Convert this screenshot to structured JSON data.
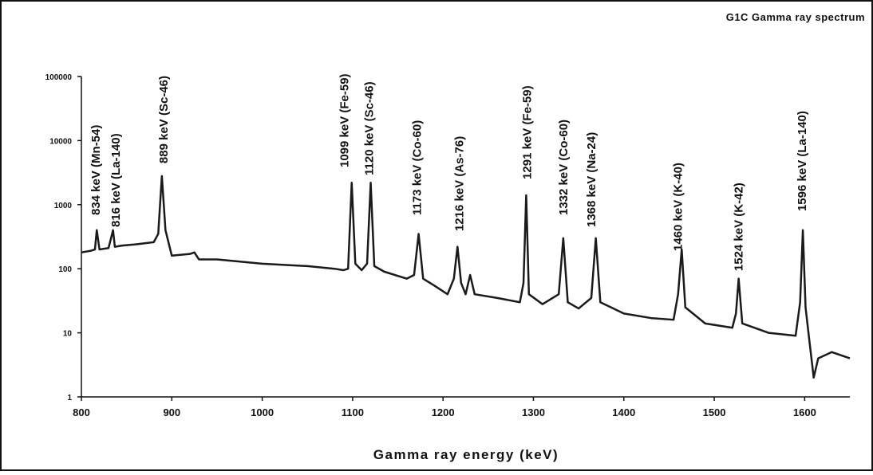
{
  "chart_data": {
    "type": "line",
    "title": "G1C Gamma ray spectrum",
    "x_label": "Gamma ray energy (keV)",
    "log_y": true,
    "grid": false,
    "xlim": [
      800,
      1650
    ],
    "xticks": [
      800,
      900,
      1000,
      1100,
      1200,
      1300,
      1400,
      1500,
      1600
    ],
    "ylim": [
      1,
      100000
    ],
    "yticks": [
      1,
      10,
      100,
      1000,
      10000,
      100000
    ],
    "series": [
      {
        "color": "#1a1a1a",
        "x": [
          800,
          810,
          815,
          817,
          820,
          830,
          835,
          837,
          845,
          860,
          880,
          885,
          889,
          893,
          900,
          920,
          925,
          930,
          950,
          1000,
          1050,
          1080,
          1090,
          1095,
          1099,
          1103,
          1110,
          1116,
          1120,
          1124,
          1135,
          1160,
          1168,
          1173,
          1178,
          1190,
          1205,
          1212,
          1216,
          1220,
          1225,
          1230,
          1235,
          1260,
          1285,
          1289,
          1292,
          1295,
          1310,
          1328,
          1333,
          1338,
          1350,
          1364,
          1369,
          1374,
          1400,
          1430,
          1455,
          1460,
          1464,
          1468,
          1490,
          1520,
          1524,
          1527,
          1531,
          1560,
          1590,
          1595,
          1598,
          1601,
          1605,
          1610,
          1615,
          1630,
          1650
        ],
        "values": [
          180,
          190,
          200,
          400,
          200,
          210,
          400,
          220,
          230,
          240,
          260,
          350,
          2800,
          400,
          160,
          170,
          180,
          140,
          140,
          120,
          110,
          100,
          95,
          100,
          2200,
          120,
          95,
          120,
          2200,
          110,
          90,
          70,
          80,
          350,
          70,
          55,
          40,
          70,
          220,
          60,
          40,
          80,
          40,
          35,
          30,
          60,
          1400,
          40,
          28,
          40,
          300,
          30,
          24,
          35,
          300,
          30,
          20,
          17,
          16,
          40,
          200,
          25,
          14,
          12,
          20,
          70,
          14,
          10,
          9,
          30,
          400,
          25,
          8,
          2,
          4,
          5,
          4
        ]
      }
    ],
    "annotations": [
      {
        "text": "834 keV (Mn-54)",
        "x": 816,
        "y": 685
      },
      {
        "text": "816 keV (La-140)",
        "x": 838,
        "y": 446
      },
      {
        "text": "889 keV (Sc-46)",
        "x": 891,
        "y": 4400
      },
      {
        "text": "1099 keV (Fe-59)",
        "x": 1091,
        "y": 3820
      },
      {
        "text": "1120 keV (Sc-46)",
        "x": 1118,
        "y": 2870
      },
      {
        "text": "1173 keV (Co-60)",
        "x": 1171,
        "y": 685
      },
      {
        "text": "1216 keV (As-76)",
        "x": 1218,
        "y": 386
      },
      {
        "text": "1291 keV (Fe-59)",
        "x": 1293,
        "y": 2490
      },
      {
        "text": "1332 keV (Co-60)",
        "x": 1333,
        "y": 685
      },
      {
        "text": "1368 keV (Na-24)",
        "x": 1364,
        "y": 446
      },
      {
        "text": "1460 keV (K-40)",
        "x": 1460,
        "y": 189
      },
      {
        "text": "1524 keV (K-42)",
        "x": 1527,
        "y": 92
      },
      {
        "text": "1596 keV (La-140)",
        "x": 1597,
        "y": 790
      }
    ]
  }
}
